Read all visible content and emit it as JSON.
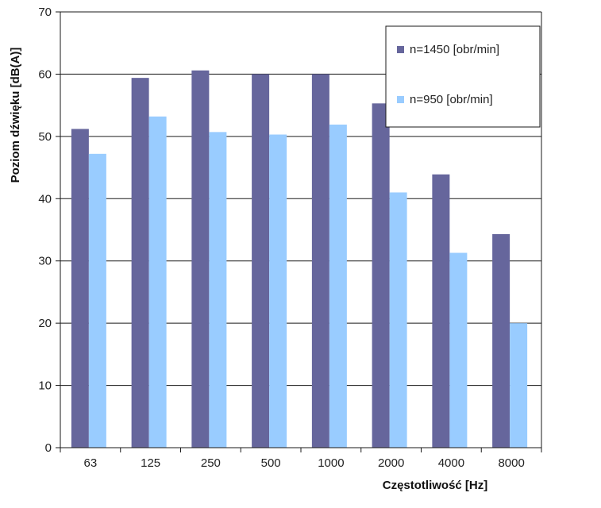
{
  "chart_data": {
    "type": "bar",
    "title": "",
    "xlabel": "Częstotliwość [Hz]",
    "ylabel": "Poziom dźwięku [dB(A)]",
    "ylim": [
      0,
      70
    ],
    "yticks": [
      0,
      10,
      20,
      30,
      40,
      50,
      60,
      70
    ],
    "grid": true,
    "legend_position": "top-right",
    "categories": [
      "63",
      "125",
      "250",
      "500",
      "1000",
      "2000",
      "4000",
      "8000"
    ],
    "series": [
      {
        "name": "n=1450 [obr/min]",
        "color": "#66669c",
        "values": [
          51.2,
          59.4,
          60.6,
          60.0,
          60.0,
          55.3,
          43.9,
          34.3
        ]
      },
      {
        "name": "n=950 [obr/min]",
        "color": "#99ccff",
        "values": [
          47.2,
          53.2,
          50.7,
          50.3,
          51.9,
          41.0,
          31.3,
          20.0
        ]
      }
    ]
  }
}
